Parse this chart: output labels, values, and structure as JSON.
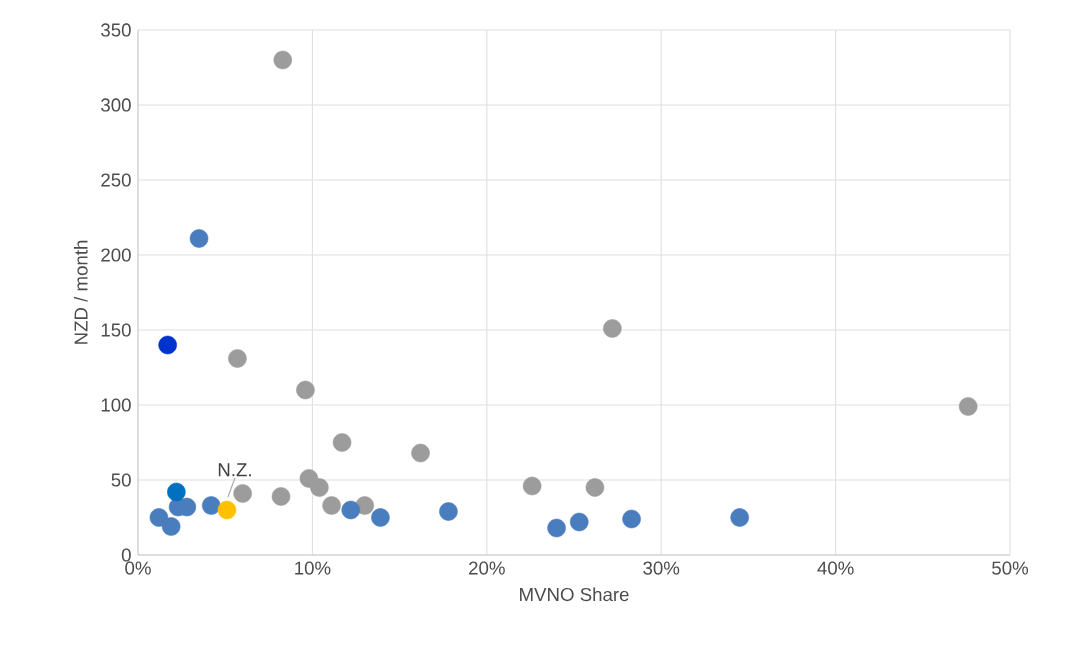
{
  "chart_data": {
    "type": "scatter",
    "xlabel": "MVNO Share",
    "ylabel": "NZD / month",
    "xlim": [
      0,
      50
    ],
    "ylim": [
      0,
      350
    ],
    "xticks": [
      {
        "value": 0,
        "label": "0%"
      },
      {
        "value": 10,
        "label": "10%"
      },
      {
        "value": 20,
        "label": "20%"
      },
      {
        "value": 30,
        "label": "30%"
      },
      {
        "value": 40,
        "label": "40%"
      },
      {
        "value": 50,
        "label": "50%"
      }
    ],
    "yticks": [
      0,
      50,
      100,
      150,
      200,
      250,
      300,
      350
    ],
    "grid": true,
    "marker": "circle",
    "series": [
      {
        "color": "#9c9c9c",
        "x": [
          8.3,
          5.7,
          9.6,
          6.0,
          8.2,
          9.8,
          10.4,
          11.1,
          11.7,
          13.0,
          16.2,
          22.6,
          26.2,
          27.2,
          47.6
        ],
        "values": [
          330,
          131,
          110,
          41,
          39,
          51,
          45,
          33,
          75,
          33,
          68,
          46,
          45,
          151,
          99
        ]
      },
      {
        "color": "#4a7dbd",
        "x": [
          1.2,
          1.9,
          2.3,
          2.8,
          3.5,
          4.2,
          12.2,
          13.9,
          17.8,
          24.0,
          25.3,
          28.3,
          34.5
        ],
        "values": [
          25,
          19,
          32,
          32,
          211,
          33,
          30,
          25,
          29,
          18,
          22,
          24,
          25
        ]
      },
      {
        "color": "#0033cc",
        "x": [
          1.7
        ],
        "values": [
          140
        ]
      },
      {
        "color": "#0070c0",
        "x": [
          2.2
        ],
        "values": [
          42
        ]
      },
      {
        "color": "#ffc000",
        "x": [
          5.1
        ],
        "values": [
          30
        ]
      }
    ],
    "annotations": [
      {
        "text": "N.Z.",
        "x": 5.1,
        "y": 30
      }
    ]
  }
}
